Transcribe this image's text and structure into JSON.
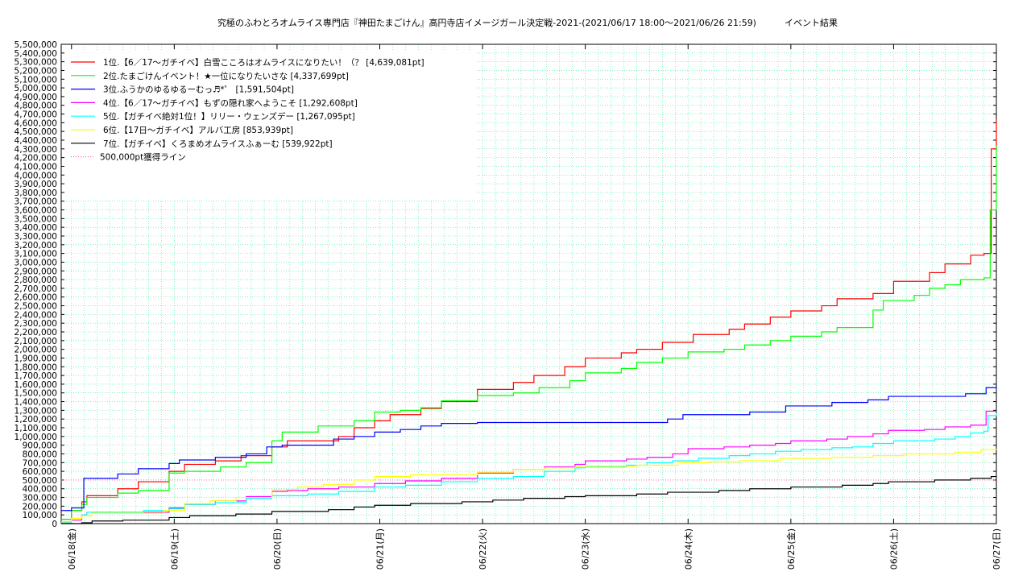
{
  "chart_data": {
    "type": "line",
    "title": "究極のふわとろオムライス専門店『神田たまごけん』高円寺店イメージガール決定戦-2021-(2021/06/17 18:00〜2021/06/26 21:59)          イベント結果",
    "xlabel": "",
    "ylabel": "",
    "x_ticks": [
      "06/18(金)",
      "06/19(土)",
      "06/20(日)",
      "06/21(月)",
      "06/22(火)",
      "06/23(水)",
      "06/24(木)",
      "06/25(金)",
      "06/26(土)",
      "06/27(日)"
    ],
    "x_range_days": [
      -0.1,
      9.0
    ],
    "ylim": [
      0,
      5500000
    ],
    "y_tick_step": 100000,
    "grid": true,
    "legend_position": "top-left",
    "series": [
      {
        "name": "1位.【6／17〜ガチイベ】白雪こころはオムライスになりたい！（？ [4,639,081pt]",
        "color": "#ff0000",
        "points": [
          [
            -0.1,
            50000
          ],
          [
            0.0,
            150000
          ],
          [
            0.1,
            250000
          ],
          [
            0.15,
            320000
          ],
          [
            0.45,
            400000
          ],
          [
            0.65,
            480000
          ],
          [
            0.95,
            600000
          ],
          [
            1.1,
            680000
          ],
          [
            1.4,
            720000
          ],
          [
            1.65,
            780000
          ],
          [
            1.95,
            880000
          ],
          [
            2.1,
            950000
          ],
          [
            2.6,
            1000000
          ],
          [
            2.75,
            1100000
          ],
          [
            2.95,
            1180000
          ],
          [
            3.1,
            1250000
          ],
          [
            3.4,
            1320000
          ],
          [
            3.6,
            1400000
          ],
          [
            3.95,
            1540000
          ],
          [
            4.3,
            1620000
          ],
          [
            4.5,
            1700000
          ],
          [
            4.8,
            1800000
          ],
          [
            5.0,
            1900000
          ],
          [
            5.35,
            1960000
          ],
          [
            5.5,
            2000000
          ],
          [
            5.75,
            2080000
          ],
          [
            6.05,
            2170000
          ],
          [
            6.4,
            2230000
          ],
          [
            6.55,
            2290000
          ],
          [
            6.8,
            2370000
          ],
          [
            7.0,
            2440000
          ],
          [
            7.3,
            2500000
          ],
          [
            7.45,
            2580000
          ],
          [
            7.8,
            2640000
          ],
          [
            8.0,
            2780000
          ],
          [
            8.35,
            2880000
          ],
          [
            8.5,
            2980000
          ],
          [
            8.75,
            3080000
          ],
          [
            8.88,
            3100000
          ],
          [
            8.95,
            4300000
          ],
          [
            9.0,
            4640000
          ]
        ]
      },
      {
        "name": "2位.たまごけんイベント！★一位になりたいさな [4,337,699pt]",
        "color": "#00ff00",
        "points": [
          [
            -0.1,
            50000
          ],
          [
            0.0,
            150000
          ],
          [
            0.1,
            220000
          ],
          [
            0.15,
            300000
          ],
          [
            0.45,
            350000
          ],
          [
            0.65,
            380000
          ],
          [
            0.95,
            580000
          ],
          [
            1.1,
            600000
          ],
          [
            1.45,
            650000
          ],
          [
            1.7,
            700000
          ],
          [
            1.95,
            950000
          ],
          [
            2.05,
            1050000
          ],
          [
            2.4,
            1120000
          ],
          [
            2.75,
            1180000
          ],
          [
            2.95,
            1280000
          ],
          [
            3.2,
            1300000
          ],
          [
            3.4,
            1330000
          ],
          [
            3.6,
            1410000
          ],
          [
            3.95,
            1470000
          ],
          [
            4.3,
            1500000
          ],
          [
            4.55,
            1560000
          ],
          [
            4.85,
            1640000
          ],
          [
            5.0,
            1730000
          ],
          [
            5.35,
            1780000
          ],
          [
            5.5,
            1850000
          ],
          [
            5.75,
            1900000
          ],
          [
            6.0,
            1970000
          ],
          [
            6.35,
            2000000
          ],
          [
            6.55,
            2050000
          ],
          [
            6.8,
            2100000
          ],
          [
            7.0,
            2150000
          ],
          [
            7.3,
            2200000
          ],
          [
            7.45,
            2250000
          ],
          [
            7.8,
            2450000
          ],
          [
            7.9,
            2560000
          ],
          [
            8.2,
            2620000
          ],
          [
            8.35,
            2700000
          ],
          [
            8.5,
            2740000
          ],
          [
            8.65,
            2800000
          ],
          [
            8.88,
            2820000
          ],
          [
            8.94,
            3600000
          ],
          [
            9.0,
            4340000
          ]
        ]
      },
      {
        "name": "3位.ふうかのゆるゆるーむっ♬*゜ [1,591,504pt]",
        "color": "#0000ff",
        "points": [
          [
            -0.1,
            150000
          ],
          [
            0.0,
            180000
          ],
          [
            0.12,
            520000
          ],
          [
            0.45,
            570000
          ],
          [
            0.65,
            630000
          ],
          [
            0.95,
            690000
          ],
          [
            1.05,
            730000
          ],
          [
            1.4,
            760000
          ],
          [
            1.7,
            800000
          ],
          [
            1.9,
            880000
          ],
          [
            2.05,
            900000
          ],
          [
            2.55,
            970000
          ],
          [
            2.75,
            1000000
          ],
          [
            2.95,
            1050000
          ],
          [
            3.2,
            1080000
          ],
          [
            3.4,
            1120000
          ],
          [
            3.6,
            1150000
          ],
          [
            3.95,
            1160000
          ],
          [
            5.8,
            1200000
          ],
          [
            5.95,
            1250000
          ],
          [
            6.6,
            1280000
          ],
          [
            6.95,
            1350000
          ],
          [
            7.4,
            1390000
          ],
          [
            7.75,
            1420000
          ],
          [
            7.95,
            1460000
          ],
          [
            8.7,
            1490000
          ],
          [
            8.9,
            1560000
          ],
          [
            9.0,
            1590000
          ]
        ]
      },
      {
        "name": "4位.【6／17〜ガチイベ】もずの隠れ家へようこそ [1,292,608pt]",
        "color": "#ff00ff",
        "points": [
          [
            -0.1,
            20000
          ],
          [
            0.0,
            40000
          ],
          [
            0.1,
            100000
          ],
          [
            0.15,
            130000
          ],
          [
            0.95,
            180000
          ],
          [
            1.1,
            220000
          ],
          [
            1.4,
            260000
          ],
          [
            1.7,
            310000
          ],
          [
            1.95,
            370000
          ],
          [
            2.1,
            380000
          ],
          [
            2.3,
            400000
          ],
          [
            2.6,
            420000
          ],
          [
            2.95,
            460000
          ],
          [
            3.25,
            490000
          ],
          [
            3.6,
            520000
          ],
          [
            3.95,
            580000
          ],
          [
            4.3,
            620000
          ],
          [
            4.6,
            650000
          ],
          [
            4.9,
            680000
          ],
          [
            5.0,
            720000
          ],
          [
            5.4,
            740000
          ],
          [
            5.6,
            760000
          ],
          [
            5.85,
            800000
          ],
          [
            6.0,
            860000
          ],
          [
            6.35,
            880000
          ],
          [
            6.6,
            900000
          ],
          [
            6.85,
            920000
          ],
          [
            7.0,
            950000
          ],
          [
            7.35,
            970000
          ],
          [
            7.55,
            1000000
          ],
          [
            7.8,
            1030000
          ],
          [
            7.95,
            1070000
          ],
          [
            8.3,
            1080000
          ],
          [
            8.5,
            1110000
          ],
          [
            8.75,
            1130000
          ],
          [
            8.9,
            1290000
          ],
          [
            9.0,
            1293000
          ]
        ]
      },
      {
        "name": "5位.【ガチイベ絶対1位！】リリー・ウェンズデー [1,267,095pt]",
        "color": "#00ffff",
        "points": [
          [
            -0.1,
            10000
          ],
          [
            0.0,
            60000
          ],
          [
            0.1,
            100000
          ],
          [
            0.15,
            130000
          ],
          [
            0.7,
            150000
          ],
          [
            0.95,
            170000
          ],
          [
            1.1,
            220000
          ],
          [
            1.4,
            240000
          ],
          [
            1.7,
            290000
          ],
          [
            1.95,
            320000
          ],
          [
            2.3,
            340000
          ],
          [
            2.6,
            370000
          ],
          [
            2.95,
            420000
          ],
          [
            3.25,
            440000
          ],
          [
            3.6,
            480000
          ],
          [
            3.95,
            520000
          ],
          [
            4.3,
            540000
          ],
          [
            4.6,
            600000
          ],
          [
            4.9,
            640000
          ],
          [
            5.0,
            650000
          ],
          [
            5.4,
            670000
          ],
          [
            5.6,
            700000
          ],
          [
            5.85,
            720000
          ],
          [
            6.1,
            750000
          ],
          [
            6.4,
            780000
          ],
          [
            6.6,
            800000
          ],
          [
            6.85,
            830000
          ],
          [
            7.1,
            850000
          ],
          [
            7.4,
            870000
          ],
          [
            7.6,
            880000
          ],
          [
            7.8,
            920000
          ],
          [
            8.0,
            950000
          ],
          [
            8.4,
            970000
          ],
          [
            8.6,
            1000000
          ],
          [
            8.75,
            1040000
          ],
          [
            8.88,
            1060000
          ],
          [
            8.92,
            1240000
          ],
          [
            9.0,
            1267000
          ]
        ]
      },
      {
        "name": "6位.【17日〜ガチイベ】アルバ工房 [853,939pt]",
        "color": "#ffff00",
        "points": [
          [
            -0.1,
            20000
          ],
          [
            0.0,
            60000
          ],
          [
            0.1,
            90000
          ],
          [
            0.2,
            120000
          ],
          [
            0.9,
            150000
          ],
          [
            1.1,
            230000
          ],
          [
            1.35,
            260000
          ],
          [
            1.6,
            300000
          ],
          [
            1.95,
            390000
          ],
          [
            2.2,
            420000
          ],
          [
            2.45,
            450000
          ],
          [
            2.75,
            500000
          ],
          [
            2.95,
            540000
          ],
          [
            3.3,
            560000
          ],
          [
            3.95,
            590000
          ],
          [
            4.3,
            620000
          ],
          [
            4.6,
            640000
          ],
          [
            4.9,
            650000
          ],
          [
            5.0,
            660000
          ],
          [
            5.5,
            670000
          ],
          [
            5.9,
            700000
          ],
          [
            6.2,
            710000
          ],
          [
            6.5,
            720000
          ],
          [
            6.9,
            750000
          ],
          [
            7.4,
            760000
          ],
          [
            7.8,
            780000
          ],
          [
            8.1,
            800000
          ],
          [
            8.6,
            820000
          ],
          [
            8.85,
            850000
          ],
          [
            9.0,
            854000
          ]
        ]
      },
      {
        "name": "7位.【ガチイベ】くろまめオムライスふぁーむ [539,922pt]",
        "color": "#000000",
        "points": [
          [
            -0.1,
            0
          ],
          [
            0.1,
            10000
          ],
          [
            0.2,
            30000
          ],
          [
            0.5,
            40000
          ],
          [
            0.95,
            70000
          ],
          [
            1.15,
            90000
          ],
          [
            1.6,
            110000
          ],
          [
            1.95,
            140000
          ],
          [
            2.5,
            160000
          ],
          [
            2.75,
            190000
          ],
          [
            2.95,
            210000
          ],
          [
            3.3,
            230000
          ],
          [
            3.8,
            250000
          ],
          [
            4.1,
            270000
          ],
          [
            4.4,
            290000
          ],
          [
            4.8,
            310000
          ],
          [
            5.0,
            320000
          ],
          [
            5.5,
            340000
          ],
          [
            5.8,
            360000
          ],
          [
            6.3,
            380000
          ],
          [
            6.6,
            400000
          ],
          [
            7.0,
            420000
          ],
          [
            7.5,
            440000
          ],
          [
            7.8,
            460000
          ],
          [
            7.95,
            480000
          ],
          [
            8.4,
            500000
          ],
          [
            8.75,
            520000
          ],
          [
            8.95,
            540000
          ],
          [
            9.0,
            540000
          ]
        ]
      }
    ],
    "reference_line": {
      "name": "500,000pt獲得ライン",
      "value": 500000,
      "color": "#ff69b4"
    }
  }
}
